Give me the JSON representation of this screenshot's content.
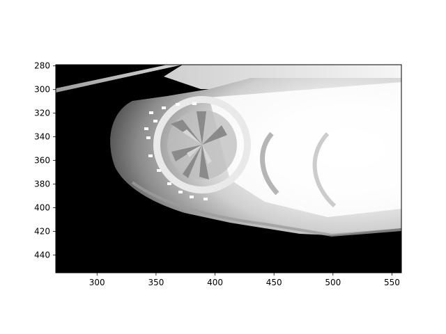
{
  "chart_data": {
    "type": "heatmap",
    "content": "grayscale rendered image",
    "title": "",
    "xlabel": "",
    "ylabel": "",
    "xlim": [
      265,
      558
    ],
    "ylim": [
      455,
      279
    ],
    "x_ticks": [
      300,
      350,
      400,
      450,
      500,
      550
    ],
    "y_ticks": [
      280,
      300,
      320,
      340,
      360,
      380,
      400,
      420,
      440
    ],
    "y_axis_inverted": true,
    "grid": false,
    "colormap": "gray",
    "colors": {
      "background": "#000000",
      "frame": "#000000",
      "figure": "#ffffff"
    }
  }
}
